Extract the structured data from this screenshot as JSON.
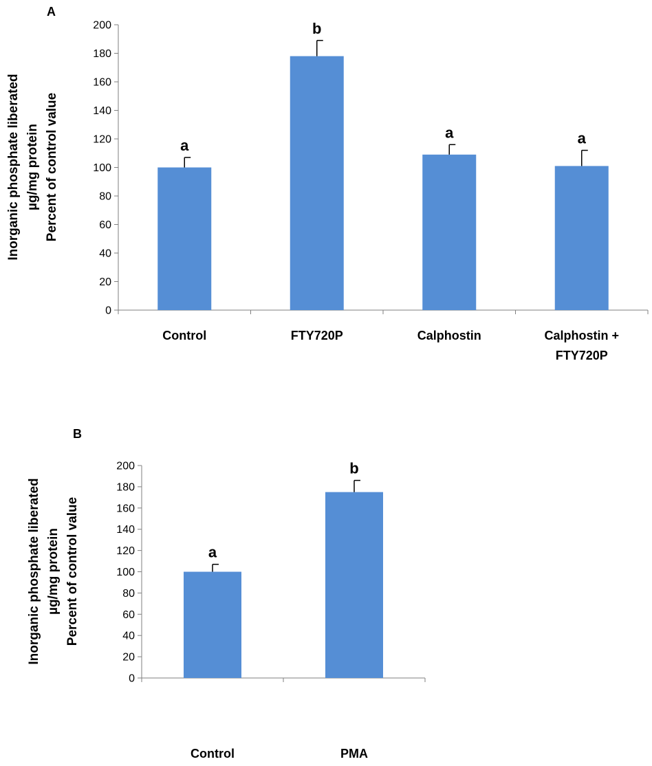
{
  "chart_data": [
    {
      "type": "bar",
      "panel_label": "A",
      "categories": [
        [
          "Control"
        ],
        [
          "FTY720P"
        ],
        [
          "Calphostin"
        ],
        [
          "Calphostin +",
          "FTY720P"
        ]
      ],
      "values": [
        100,
        178,
        109,
        101
      ],
      "errors": [
        7,
        11,
        7,
        11
      ],
      "significance": [
        "a",
        "b",
        "a",
        "a"
      ],
      "ylabel": [
        "Inorganic phosphate liberated",
        "µg/mg protein",
        "Percent of control value"
      ],
      "ylim": [
        0,
        200
      ],
      "yticks": [
        0,
        20,
        40,
        60,
        80,
        100,
        120,
        140,
        160,
        180,
        200
      ],
      "grid": false,
      "bar_color": "#558ed5"
    },
    {
      "type": "bar",
      "panel_label": "B",
      "categories": [
        [
          "Control"
        ],
        [
          "PMA"
        ]
      ],
      "values": [
        100,
        175
      ],
      "errors": [
        7,
        11
      ],
      "significance": [
        "a",
        "b"
      ],
      "ylabel": [
        "Inorganic phosphate liberated",
        "µg/mg protein",
        "Percent of control value"
      ],
      "ylim": [
        0,
        200
      ],
      "yticks": [
        0,
        20,
        40,
        60,
        80,
        100,
        120,
        140,
        160,
        180,
        200
      ],
      "grid": false,
      "bar_color": "#558ed5"
    }
  ]
}
